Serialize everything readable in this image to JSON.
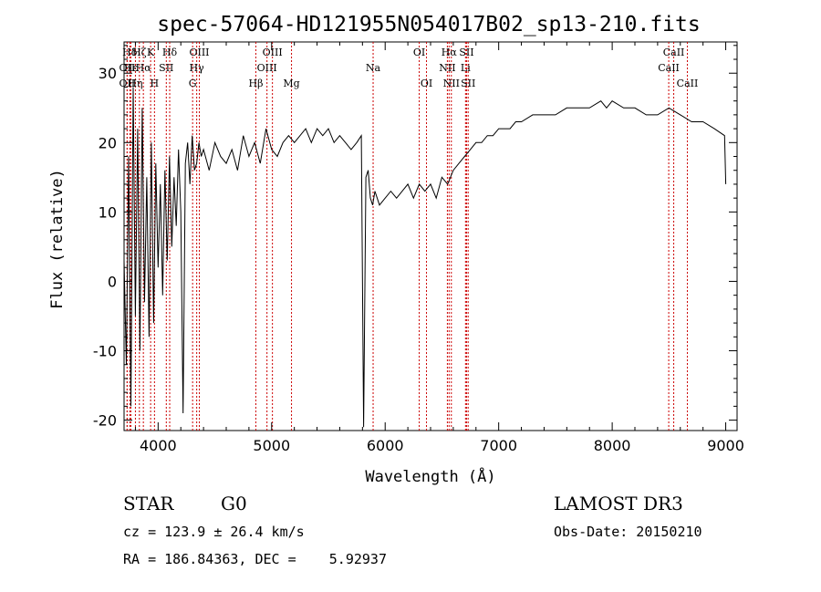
{
  "chart_data": {
    "type": "line",
    "title": "spec-57064-HD121955N054017B02_sp13-210.fits",
    "xlabel": "Wavelength (Å)",
    "ylabel": "Flux (relative)",
    "xlim": [
      3700,
      9100
    ],
    "ylim": [
      -21.5,
      34.5
    ],
    "xticks": [
      4000,
      5000,
      6000,
      7000,
      8000,
      9000
    ],
    "yticks": [
      -20,
      -10,
      0,
      10,
      20,
      30
    ],
    "series": [
      {
        "name": "flux",
        "x": [
          3700,
          3720,
          3740,
          3760,
          3780,
          3800,
          3820,
          3840,
          3860,
          3880,
          3900,
          3920,
          3940,
          3960,
          3980,
          4000,
          4020,
          4040,
          4060,
          4080,
          4100,
          4120,
          4140,
          4160,
          4180,
          4200,
          4220,
          4240,
          4260,
          4280,
          4300,
          4320,
          4340,
          4360,
          4380,
          4400,
          4450,
          4500,
          4550,
          4600,
          4650,
          4700,
          4750,
          4800,
          4850,
          4900,
          4950,
          5000,
          5050,
          5100,
          5150,
          5200,
          5250,
          5300,
          5350,
          5400,
          5450,
          5500,
          5550,
          5600,
          5650,
          5700,
          5750,
          5790,
          5810,
          5830,
          5850,
          5870,
          5890,
          5910,
          5930,
          5950,
          6000,
          6050,
          6100,
          6150,
          6200,
          6250,
          6300,
          6350,
          6400,
          6450,
          6500,
          6550,
          6600,
          6650,
          6700,
          6750,
          6800,
          6850,
          6900,
          6950,
          7000,
          7050,
          7100,
          7150,
          7200,
          7300,
          7400,
          7500,
          7600,
          7700,
          7800,
          7900,
          7950,
          8000,
          8100,
          8200,
          8300,
          8400,
          8500,
          8600,
          8700,
          8800,
          8900,
          8990,
          9000
        ],
        "y": [
          3,
          -12,
          18,
          -18,
          28,
          -5,
          22,
          -10,
          25,
          -3,
          15,
          -8,
          20,
          -6,
          17,
          2,
          14,
          -2,
          16,
          3,
          18,
          5,
          15,
          8,
          19,
          10,
          -19,
          17,
          20,
          14,
          21,
          16,
          17,
          20,
          18,
          19,
          16,
          20,
          18,
          17,
          19,
          16,
          21,
          18,
          20,
          17,
          22,
          19,
          18,
          20,
          21,
          20,
          21,
          22,
          20,
          22,
          21,
          22,
          20,
          21,
          20,
          19,
          20,
          21,
          -21,
          15,
          16,
          12,
          11,
          13,
          12,
          11,
          12,
          13,
          12,
          13,
          14,
          12,
          14,
          13,
          14,
          12,
          15,
          14,
          16,
          17,
          18,
          19,
          20,
          20,
          21,
          21,
          22,
          22,
          22,
          23,
          23,
          24,
          24,
          24,
          25,
          25,
          25,
          26,
          25,
          26,
          25,
          25,
          24,
          24,
          25,
          24,
          23,
          23,
          22,
          21,
          14
        ]
      }
    ],
    "spectral_lines": [
      {
        "label": "Hδ",
        "wavelength": 3750,
        "row": 1
      },
      {
        "label": "OII",
        "wavelength": 3727,
        "row": 2
      },
      {
        "label": "OII",
        "wavelength": 3727,
        "row": 3
      },
      {
        "label": "Hε",
        "wavelength": 3760,
        "row": 2
      },
      {
        "label": "Hη",
        "wavelength": 3800,
        "row": 3
      },
      {
        "label": "Hζ",
        "wavelength": 3835,
        "row": 1
      },
      {
        "label": "Hα",
        "wavelength": 3870,
        "row": 2
      },
      {
        "label": "K",
        "wavelength": 3934,
        "row": 1
      },
      {
        "label": "H",
        "wavelength": 3968,
        "row": 3
      },
      {
        "label": "SII",
        "wavelength": 4072,
        "row": 2
      },
      {
        "label": "Hδ",
        "wavelength": 4102,
        "row": 1
      },
      {
        "label": "G",
        "wavelength": 4304,
        "row": 3
      },
      {
        "label": "Hγ",
        "wavelength": 4340,
        "row": 2
      },
      {
        "label": "OIII",
        "wavelength": 4363,
        "row": 1
      },
      {
        "label": "Hβ",
        "wavelength": 4861,
        "row": 3
      },
      {
        "label": "OIII",
        "wavelength": 4959,
        "row": 2
      },
      {
        "label": "OIII",
        "wavelength": 5007,
        "row": 1
      },
      {
        "label": "Mg",
        "wavelength": 5175,
        "row": 3
      },
      {
        "label": "Na",
        "wavelength": 5894,
        "row": 2
      },
      {
        "label": "OI",
        "wavelength": 6300,
        "row": 1
      },
      {
        "label": "OI",
        "wavelength": 6364,
        "row": 3
      },
      {
        "label": "NII",
        "wavelength": 6548,
        "row": 2
      },
      {
        "label": "Hα",
        "wavelength": 6563,
        "row": 1
      },
      {
        "label": "NII",
        "wavelength": 6583,
        "row": 3
      },
      {
        "label": "SII",
        "wavelength": 6717,
        "row": 1
      },
      {
        "label": "Li",
        "wavelength": 6708,
        "row": 2
      },
      {
        "label": "SII",
        "wavelength": 6731,
        "row": 3
      },
      {
        "label": "CaII",
        "wavelength": 8498,
        "row": 2
      },
      {
        "label": "CaII",
        "wavelength": 8542,
        "row": 1
      },
      {
        "label": "CaII",
        "wavelength": 8662,
        "row": 3
      }
    ],
    "line_color": "#000000",
    "marker_color": "#cc0000"
  },
  "info": {
    "object_type": "STAR",
    "subclass": "G0",
    "survey": "LAMOST DR3",
    "redshift": "cz = 123.9 ± 26.4 km/s",
    "obs_date": "Obs-Date: 20150210",
    "coords": "RA = 186.84363, DEC =    5.92937"
  }
}
